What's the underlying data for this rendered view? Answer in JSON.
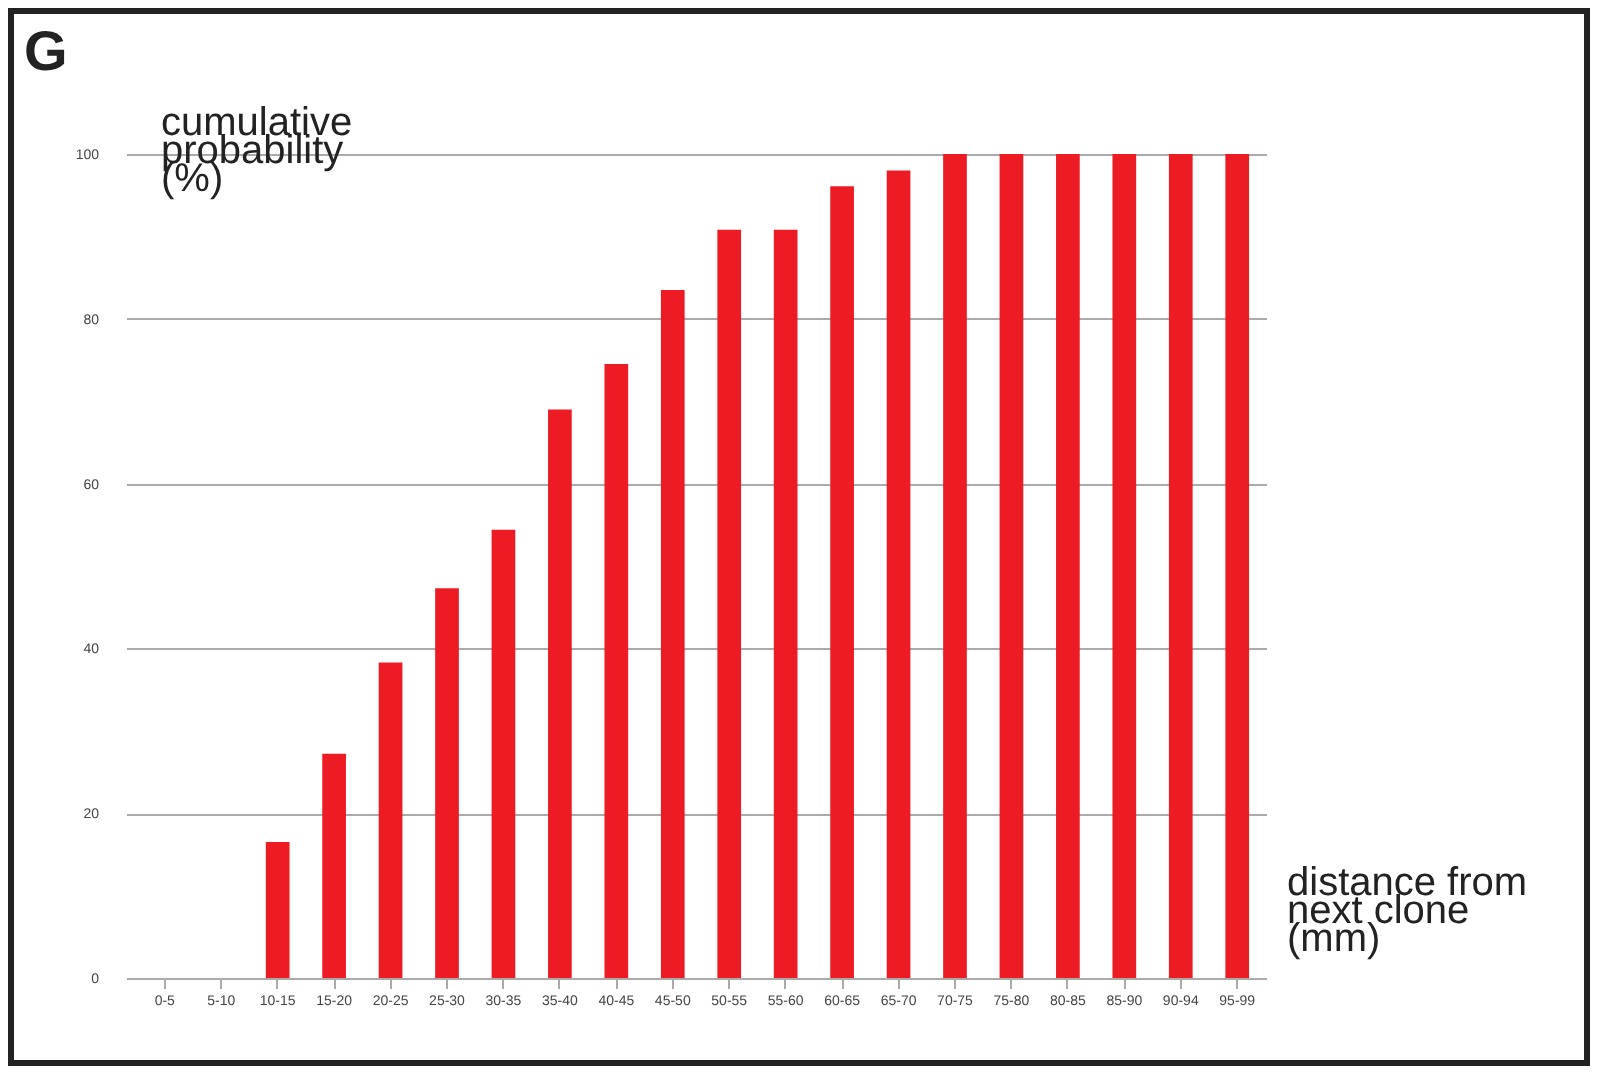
{
  "chart_data": {
    "type": "bar",
    "title": "G",
    "ylabel": "cumulative\nprobability\n(%)",
    "xlabel": "distance from\nnext clone\n(mm)",
    "categories": [
      "0-5",
      "5-10",
      "10-15",
      "15-20",
      "20-25",
      "25-30",
      "30-35",
      "35-40",
      "40-45",
      "45-50",
      "50-55",
      "55-60",
      "60-65",
      "65-70",
      "70-75",
      "75-80",
      "80-85",
      "85-90",
      "90-94",
      "95-99"
    ],
    "values": [
      0,
      0,
      16.5,
      27.2,
      38.3,
      47.3,
      54.4,
      69,
      74.5,
      83.5,
      90.8,
      90.8,
      96.1,
      98,
      100,
      100,
      100,
      100,
      100,
      100
    ],
    "color": "#ed1c24",
    "ylim": [
      0,
      100
    ],
    "yticks": [
      0,
      20,
      40,
      60,
      80,
      100
    ],
    "grid": "y"
  }
}
